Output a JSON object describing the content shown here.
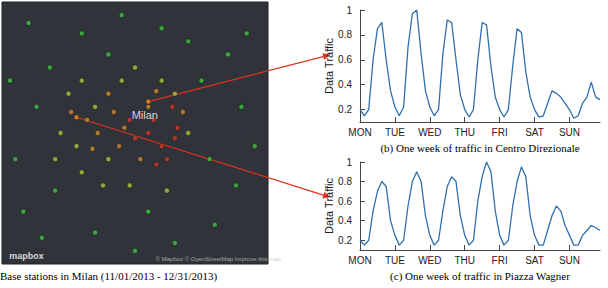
{
  "chart_data": [
    {
      "type": "scatter",
      "title": "Base stations in Milan (11/01/2013 - 12/31/2013)",
      "xlim": [
        0,
        100
      ],
      "ylim": [
        0,
        100
      ],
      "tick_labels": false,
      "grid": false,
      "x": [
        10,
        13,
        5,
        8,
        15,
        30,
        45,
        60,
        70,
        85,
        90,
        95,
        88,
        80,
        65,
        50,
        35,
        20,
        18,
        75,
        92,
        3,
        40,
        55,
        78,
        25,
        30,
        35,
        22,
        28,
        40,
        45,
        50,
        60,
        65,
        30,
        38,
        48,
        62,
        70,
        20,
        32,
        36,
        42,
        46,
        40,
        55,
        58,
        34,
        44,
        68,
        52,
        26,
        55,
        28,
        55,
        60,
        62,
        58,
        65,
        50,
        57,
        64,
        48,
        66
      ],
      "y": [
        92,
        60,
        40,
        20,
        10,
        88,
        95,
        90,
        85,
        80,
        60,
        45,
        30,
        15,
        8,
        5,
        12,
        28,
        75,
        70,
        88,
        70,
        80,
        20,
        40,
        65,
        70,
        60,
        50,
        45,
        40,
        70,
        75,
        70,
        65,
        35,
        30,
        30,
        28,
        50,
        40,
        55,
        50,
        58,
        52,
        65,
        60,
        66,
        44,
        45,
        58,
        40,
        58,
        62,
        56,
        50,
        45,
        40,
        38,
        48,
        48,
        55,
        60,
        55,
        52
      ],
      "colors": [
        "#3ec43e",
        "#3ec43e",
        "#3ec43e",
        "#3ec43e",
        "#3ec43e",
        "#3ec43e",
        "#3ec43e",
        "#3ec43e",
        "#3ec43e",
        "#3ec43e",
        "#3ec43e",
        "#3ec43e",
        "#3ec43e",
        "#3ec43e",
        "#3ec43e",
        "#3ec43e",
        "#3ec43e",
        "#3ec43e",
        "#3ec43e",
        "#3ec43e",
        "#3ec43e",
        "#3ec43e",
        "#3ec43e",
        "#3ec43e",
        "#3ec43e",
        "#a6c83a",
        "#a6c83a",
        "#a6c83a",
        "#a6c83a",
        "#a6c83a",
        "#a6c83a",
        "#a6c83a",
        "#a6c83a",
        "#a6c83a",
        "#a6c83a",
        "#a6c83a",
        "#a6c83a",
        "#a6c83a",
        "#a6c83a",
        "#a6c83a",
        "#a6c83a",
        "#d08c2a",
        "#d08c2a",
        "#d08c2a",
        "#d08c2a",
        "#d08c2a",
        "#d08c2a",
        "#d08c2a",
        "#d08c2a",
        "#d08c2a",
        "#d08c2a",
        "#d08c2a",
        "#d08c2a",
        "#d08c2a",
        "#d08c2a",
        "#d23a2a",
        "#d23a2a",
        "#d23a2a",
        "#d23a2a",
        "#d23a2a",
        "#d23a2a",
        "#d23a2a",
        "#d23a2a",
        "#d23a2a",
        "#d23a2a"
      ],
      "annotations": [
        {
          "text": "Milan",
          "x": 48,
          "y": 57
        },
        {
          "text": "mapbox",
          "x": 2,
          "y": 3
        },
        {
          "text": "© Mapbox © OpenStreetMap Improve this map",
          "x": 57,
          "y": 2
        }
      ],
      "linked_stations": [
        {
          "x": 55,
          "y": 62
        },
        {
          "x": 28,
          "y": 56
        }
      ]
    },
    {
      "type": "line",
      "title": "(b) One week of traffic in Centro Direzionale",
      "ylabel": "Data Traffic",
      "color": "#2f6fad",
      "grid": false,
      "categories": [
        "MON",
        null,
        null,
        null,
        null,
        null,
        null,
        null,
        "TUE",
        null,
        null,
        null,
        null,
        null,
        null,
        null,
        "WED",
        null,
        null,
        null,
        null,
        null,
        null,
        null,
        "THU",
        null,
        null,
        null,
        null,
        null,
        null,
        null,
        "FRI",
        null,
        null,
        null,
        null,
        null,
        null,
        null,
        "SAT",
        null,
        null,
        null,
        null,
        null,
        null,
        null,
        "SUN",
        null,
        null,
        null,
        null,
        null,
        null,
        null
      ],
      "values": [
        0.2,
        0.15,
        0.2,
        0.6,
        0.85,
        0.9,
        0.6,
        0.35,
        0.22,
        0.15,
        0.22,
        0.7,
        0.97,
        1.0,
        0.65,
        0.35,
        0.22,
        0.15,
        0.2,
        0.65,
        0.92,
        0.9,
        0.6,
        0.32,
        0.2,
        0.14,
        0.2,
        0.6,
        0.9,
        0.88,
        0.55,
        0.3,
        0.2,
        0.14,
        0.2,
        0.55,
        0.85,
        0.82,
        0.5,
        0.3,
        0.2,
        0.14,
        0.15,
        0.25,
        0.35,
        0.33,
        0.3,
        0.25,
        0.2,
        0.13,
        0.15,
        0.25,
        0.3,
        0.42,
        0.3,
        0.28
      ],
      "ylim": [
        0.1,
        1
      ],
      "yticks": [
        0.2,
        0.4,
        0.6,
        0.8,
        1
      ]
    },
    {
      "type": "line",
      "title": "(c) One week of traffic in Piazza Wagner",
      "ylabel": "Data Traffic",
      "color": "#2f6fad",
      "grid": false,
      "categories": [
        "MON",
        null,
        null,
        null,
        null,
        null,
        null,
        null,
        "TUE",
        null,
        null,
        null,
        null,
        null,
        null,
        null,
        "WED",
        null,
        null,
        null,
        null,
        null,
        null,
        null,
        "THU",
        null,
        null,
        null,
        null,
        null,
        null,
        null,
        "FRI",
        null,
        null,
        null,
        null,
        null,
        null,
        null,
        "SAT",
        null,
        null,
        null,
        null,
        null,
        null,
        null,
        "SUN",
        null,
        null,
        null,
        null,
        null,
        null,
        null
      ],
      "values": [
        0.2,
        0.15,
        0.2,
        0.5,
        0.7,
        0.8,
        0.75,
        0.4,
        0.25,
        0.15,
        0.2,
        0.55,
        0.8,
        0.9,
        0.8,
        0.45,
        0.25,
        0.15,
        0.2,
        0.5,
        0.75,
        0.85,
        0.8,
        0.45,
        0.25,
        0.15,
        0.2,
        0.6,
        0.85,
        1.0,
        0.9,
        0.5,
        0.25,
        0.15,
        0.2,
        0.55,
        0.8,
        0.95,
        0.85,
        0.45,
        0.25,
        0.15,
        0.15,
        0.3,
        0.45,
        0.55,
        0.5,
        0.35,
        0.25,
        0.15,
        0.15,
        0.25,
        0.3,
        0.35,
        0.33,
        0.3
      ],
      "ylim": [
        0.1,
        1
      ],
      "yticks": [
        0.2,
        0.4,
        0.6,
        0.8,
        1
      ]
    }
  ]
}
